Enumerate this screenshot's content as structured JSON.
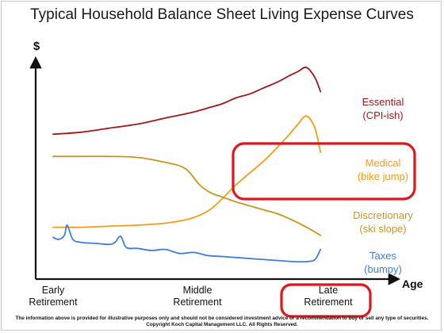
{
  "chart_data": {
    "type": "line",
    "title": "Typical Household Balance Sheet Living Expense Curves",
    "ylabel": "$",
    "xlabel": "Age",
    "x_ticks": [
      "Early\nRetirement",
      "Middle\nRetirement",
      "Late\nRetirement"
    ],
    "xlim": [
      0,
      100
    ],
    "ylim": [
      0,
      100
    ],
    "grid": false,
    "series": [
      {
        "name": "Essential\n(CPI-ish)",
        "color": "#a31717",
        "x": [
          0,
          10,
          20,
          30,
          40,
          50,
          55,
          60,
          65,
          70,
          75,
          80,
          84,
          87,
          90,
          93,
          95
        ],
        "y": [
          65,
          66,
          68,
          70,
          73,
          76,
          78,
          80,
          83,
          85,
          88,
          91,
          94,
          96,
          98,
          93,
          86
        ]
      },
      {
        "name": "Medical\n(bike jump)",
        "color": "#f29d1a",
        "x": [
          0,
          10,
          20,
          30,
          40,
          48,
          55,
          60,
          65,
          70,
          75,
          80,
          84,
          87,
          90,
          93,
          95
        ],
        "y": [
          19,
          19,
          19.5,
          20,
          21,
          23,
          27,
          33,
          40,
          46,
          52,
          59,
          65,
          70,
          74,
          68,
          56
        ]
      },
      {
        "name": "Discretionary\n(ski slope)",
        "color": "#c8951f",
        "x": [
          0,
          10,
          20,
          30,
          40,
          47,
          52,
          56,
          60,
          65,
          70,
          75,
          80,
          85,
          90,
          95
        ],
        "y": [
          54,
          54,
          54,
          53.5,
          51,
          48,
          40,
          36,
          34,
          31.5,
          29.5,
          27.5,
          25.5,
          22.5,
          19,
          15
        ]
      },
      {
        "name": "Taxes\n(bumpy)",
        "color": "#3d7fd8",
        "x": [
          0,
          2,
          4,
          5,
          7,
          10,
          15,
          20,
          22,
          24,
          26,
          30,
          35,
          40,
          45,
          50,
          55,
          60,
          65,
          70,
          75,
          80,
          85,
          90,
          93,
          95
        ],
        "y": [
          14,
          13,
          15,
          20,
          13,
          11.5,
          11,
          10.5,
          11.5,
          14.5,
          9,
          8.5,
          7.5,
          8,
          6,
          6.5,
          5,
          4.5,
          4,
          3.5,
          3,
          2.5,
          2,
          2,
          3,
          8
        ]
      }
    ],
    "highlights": [
      "Medical\n(bike jump)",
      "Late\nRetirement"
    ]
  },
  "footer": "The information above is provided for illustrative purposes only and should not be considered investment advice or a recommendation to buy or sell any type of securities. Copyright Koch Capital Management LLC. All Rights Reserved."
}
